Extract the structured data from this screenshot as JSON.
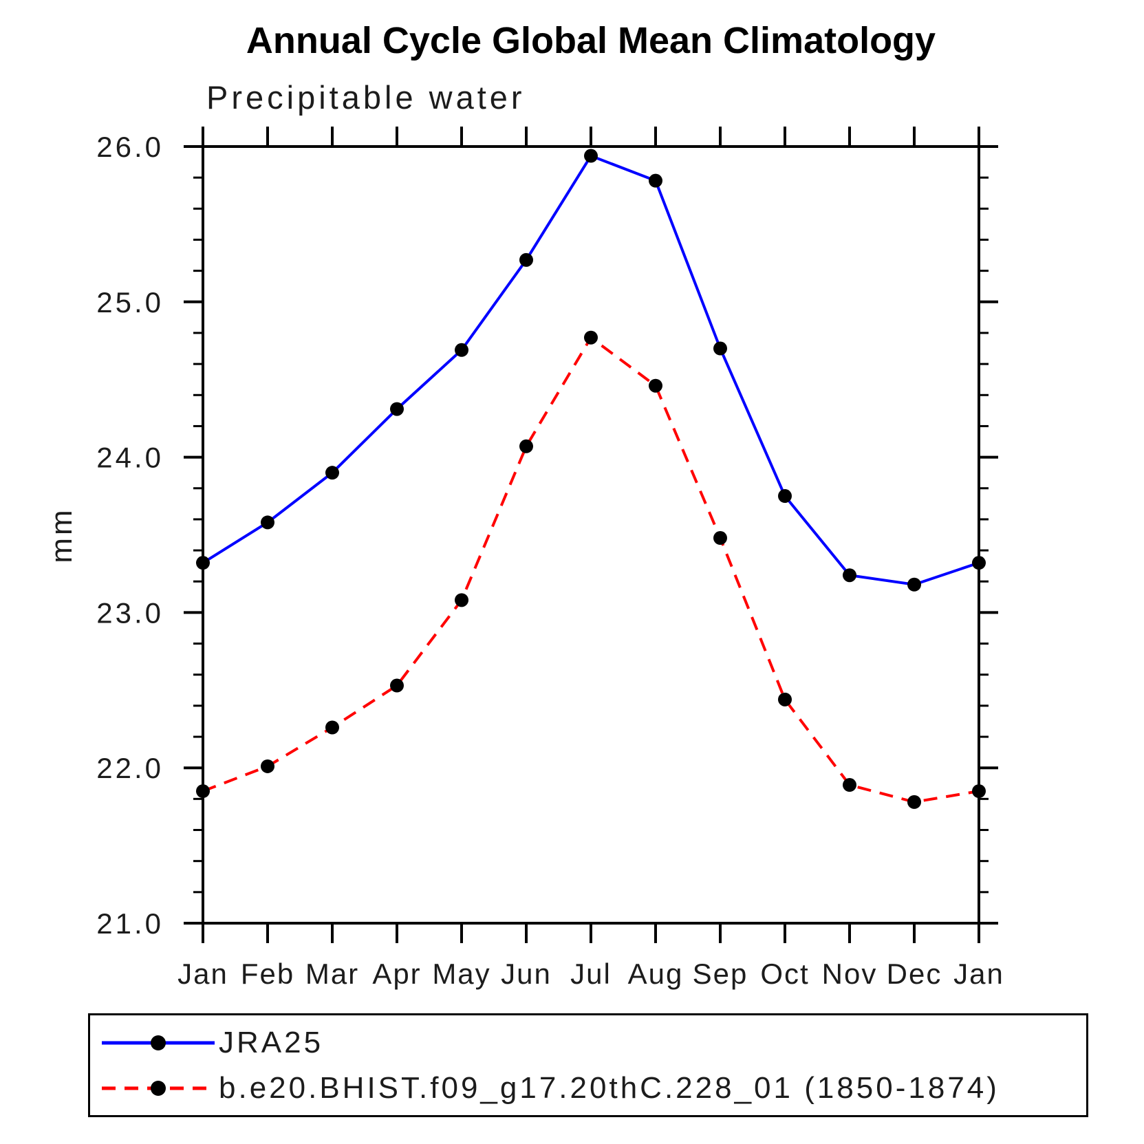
{
  "header": {
    "title": "Annual Cycle Global Mean Climatology",
    "subtitle": "Precipitable water"
  },
  "chart_data": {
    "type": "line",
    "title": "Annual Cycle Global Mean Climatology",
    "subtitle": "Precipitable water",
    "xlabel": "",
    "ylabel": "mm",
    "ylim": [
      21.0,
      26.0
    ],
    "yticks": [
      21.0,
      22.0,
      23.0,
      24.0,
      25.0,
      26.0
    ],
    "ytick_labels": [
      "21.0",
      "22.0",
      "23.0",
      "24.0",
      "25.0",
      "26.0"
    ],
    "yminor_interval": 0.2,
    "grid": false,
    "legend_position": "bottom-left-box",
    "categories": [
      "Jan",
      "Feb",
      "Mar",
      "Apr",
      "May",
      "Jun",
      "Jul",
      "Aug",
      "Sep",
      "Oct",
      "Nov",
      "Dec",
      "Jan"
    ],
    "series": [
      {
        "name": "JRA25",
        "color": "#0000ff",
        "line_style": "solid",
        "marker": "circle",
        "marker_color": "#000000",
        "values": [
          23.32,
          23.58,
          23.9,
          24.31,
          24.69,
          25.27,
          25.94,
          25.78,
          24.7,
          23.75,
          23.24,
          23.18,
          23.32
        ]
      },
      {
        "name": "b.e20.BHIST.f09_g17.20thC.228_01 (1850-1874)",
        "color": "#ff0000",
        "line_style": "dashed",
        "marker": "circle",
        "marker_color": "#000000",
        "values": [
          21.85,
          22.01,
          22.26,
          22.53,
          23.08,
          24.07,
          24.77,
          24.46,
          23.48,
          22.44,
          21.89,
          21.78,
          21.85
        ]
      }
    ]
  },
  "colors": {
    "axis": "#000000",
    "text": "#1c1c1c",
    "series_blue": "#0000ff",
    "series_red": "#ff0000",
    "marker": "#000000"
  }
}
